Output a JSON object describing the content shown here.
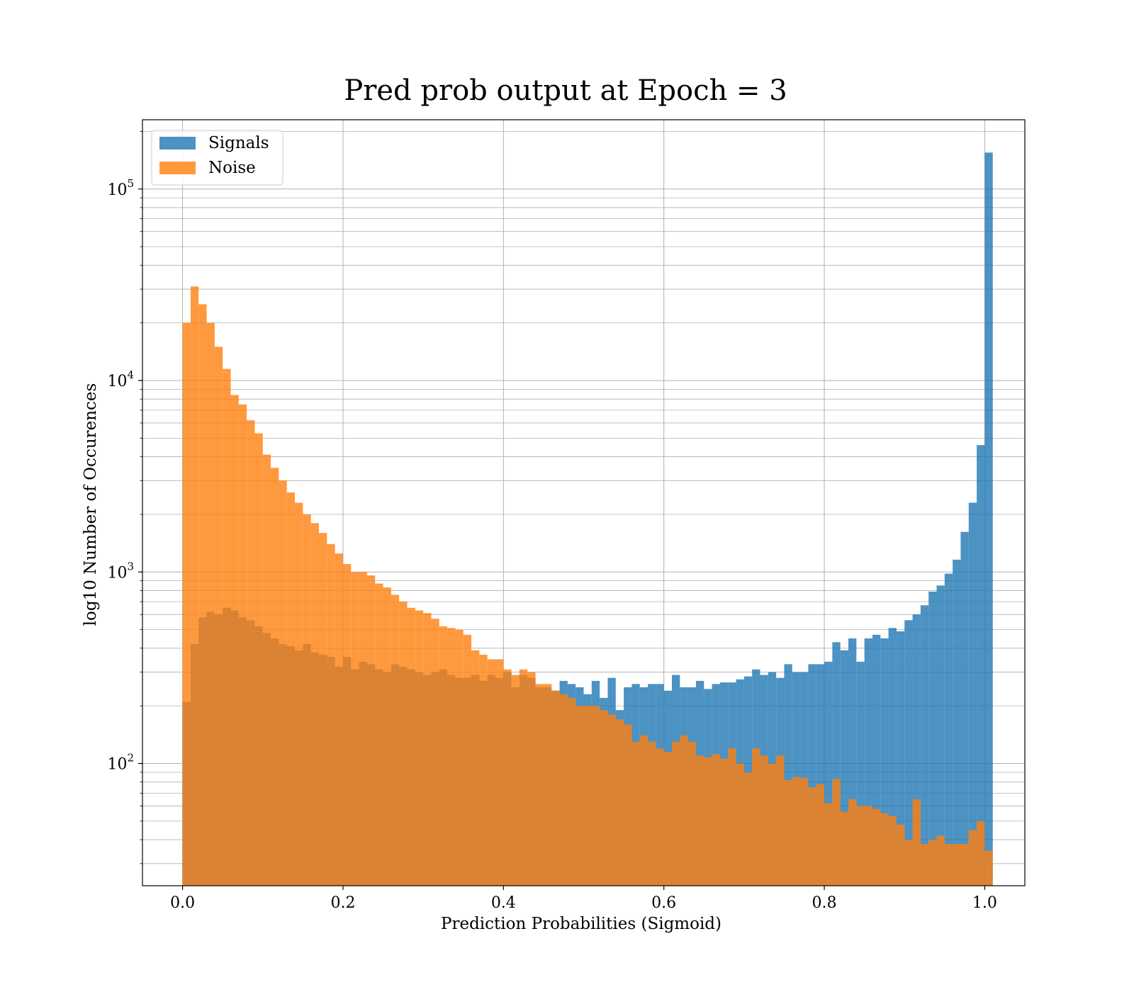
{
  "chart_data": {
    "type": "histogram",
    "title": "Pred prob output at Epoch = 3",
    "xlabel": "Prediction Probabilities (Sigmoid)",
    "ylabel": "log10 Number of Occurences",
    "xlim": [
      -0.05,
      1.05
    ],
    "ylim": [
      23,
      230000
    ],
    "yscale": "log",
    "grid": true,
    "legend_position": "upper-left",
    "xticks": [
      {
        "value": 0.0,
        "label": "0.0"
      },
      {
        "value": 0.2,
        "label": "0.2"
      },
      {
        "value": 0.4,
        "label": "0.4"
      },
      {
        "value": 0.6,
        "label": "0.6"
      },
      {
        "value": 0.8,
        "label": "0.8"
      },
      {
        "value": 1.0,
        "label": "1.0"
      }
    ],
    "yticks": [
      {
        "value": 100,
        "base": "10",
        "exp": "2"
      },
      {
        "value": 1000,
        "base": "10",
        "exp": "3"
      },
      {
        "value": 10000,
        "base": "10",
        "exp": "4"
      },
      {
        "value": 100000,
        "base": "10",
        "exp": "5"
      }
    ],
    "bin_start": 0.0,
    "bin_width": 0.01,
    "series": [
      {
        "name": "Signals",
        "color": "#1f77b4",
        "opacity": 0.8,
        "values": [
          210,
          420,
          580,
          620,
          600,
          650,
          630,
          580,
          560,
          520,
          480,
          450,
          420,
          410,
          390,
          420,
          380,
          370,
          360,
          320,
          360,
          310,
          340,
          330,
          310,
          300,
          330,
          320,
          310,
          300,
          290,
          300,
          310,
          290,
          280,
          280,
          290,
          270,
          290,
          280,
          300,
          250,
          290,
          280,
          250,
          250,
          240,
          270,
          260,
          250,
          230,
          270,
          220,
          280,
          190,
          250,
          260,
          250,
          260,
          260,
          240,
          290,
          250,
          250,
          270,
          245,
          260,
          265,
          265,
          275,
          285,
          310,
          290,
          300,
          280,
          330,
          300,
          300,
          330,
          330,
          340,
          430,
          390,
          450,
          340,
          450,
          470,
          450,
          510,
          490,
          560,
          600,
          670,
          790,
          850,
          980,
          1160,
          1620,
          2300,
          4600,
          155000
        ]
      },
      {
        "name": "Noise",
        "color": "#ff7f0e",
        "opacity": 0.8,
        "values": [
          20000,
          31000,
          25000,
          20000,
          15000,
          11500,
          8400,
          7500,
          6200,
          5300,
          4100,
          3500,
          3000,
          2600,
          2300,
          2000,
          1800,
          1600,
          1400,
          1250,
          1100,
          1000,
          1000,
          960,
          870,
          830,
          760,
          700,
          650,
          630,
          610,
          570,
          520,
          510,
          500,
          470,
          390,
          370,
          350,
          350,
          310,
          290,
          310,
          300,
          260,
          260,
          240,
          230,
          220,
          200,
          200,
          200,
          190,
          180,
          170,
          160,
          130,
          140,
          130,
          120,
          115,
          130,
          140,
          130,
          110,
          108,
          112,
          106,
          120,
          100,
          90,
          120,
          110,
          100,
          110,
          82,
          85,
          84,
          75,
          78,
          62,
          83,
          56,
          65,
          60,
          60,
          58,
          55,
          53,
          48,
          40,
          65,
          38,
          40,
          42,
          38,
          38,
          38,
          45,
          50,
          35
        ]
      }
    ]
  }
}
